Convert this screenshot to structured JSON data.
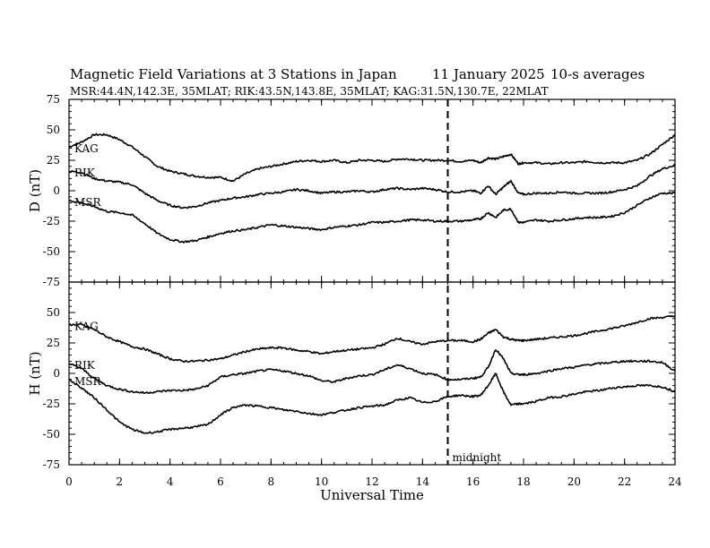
{
  "header": {
    "title": "Magnetic Field Variations at 3 Stations in Japan",
    "date": "11 January  2025",
    "averages": "10-s averages",
    "stations": "MSR:44.4N,142.3E, 35MLAT;  RIK:43.5N,143.8E, 35MLAT;  KAG:31.5N,130.7E, 22MLAT"
  },
  "chart_data": [
    {
      "type": "line",
      "ylabel": "D (nT)",
      "ylim": [
        -75,
        75
      ],
      "yticks": [
        -75,
        -50,
        -25,
        0,
        25,
        50,
        75
      ],
      "xlim": [
        0,
        24
      ],
      "xticks": [
        0,
        2,
        4,
        6,
        8,
        10,
        12,
        14,
        16,
        18,
        20,
        22,
        24
      ],
      "series": [
        {
          "name": "KAG",
          "x": [
            0,
            0.5,
            1,
            1.5,
            2,
            2.5,
            3,
            3.5,
            4,
            4.5,
            5,
            5.5,
            6,
            6.5,
            7,
            7.5,
            8,
            8.5,
            9,
            9.5,
            10,
            10.5,
            11,
            11.5,
            12,
            12.5,
            13,
            13.5,
            14,
            14.5,
            15,
            15.5,
            16,
            16.3,
            16.6,
            16.9,
            17.2,
            17.5,
            17.8,
            18,
            18.5,
            19,
            19.5,
            20,
            20.5,
            21,
            21.5,
            22,
            22.5,
            23,
            23.5,
            24
          ],
          "y": [
            36,
            40,
            46,
            46,
            42,
            36,
            28,
            20,
            16,
            14,
            12,
            11,
            11,
            8,
            14,
            18,
            20,
            22,
            24,
            25,
            24,
            25,
            23,
            25,
            25,
            24,
            26,
            26,
            25,
            25,
            25,
            24,
            25,
            23,
            27,
            26,
            28,
            30,
            22,
            23,
            23,
            22,
            23,
            23,
            24,
            23,
            23,
            23,
            25,
            30,
            38,
            46
          ]
        },
        {
          "name": "RIK",
          "x": [
            0,
            0.5,
            1,
            1.5,
            2,
            2.5,
            3,
            3.5,
            4,
            4.5,
            5,
            5.5,
            6,
            6.5,
            7,
            7.5,
            8,
            8.5,
            9,
            9.5,
            10,
            10.5,
            11,
            11.5,
            12,
            12.5,
            13,
            13.5,
            14,
            14.5,
            15,
            15.5,
            16,
            16.3,
            16.6,
            16.9,
            17.2,
            17.5,
            17.8,
            18,
            18.5,
            19,
            19.5,
            20,
            20.5,
            21,
            21.5,
            22,
            22.5,
            23,
            23.5,
            24
          ],
          "y": [
            16,
            15,
            10,
            8,
            7,
            5,
            -2,
            -8,
            -12,
            -14,
            -13,
            -10,
            -8,
            -6,
            -5,
            -3,
            -2,
            -1,
            1,
            0,
            -2,
            -1,
            -1,
            0,
            -1,
            1,
            2,
            1,
            2,
            1,
            -1,
            -1,
            0,
            -2,
            4,
            -3,
            3,
            8,
            -2,
            -3,
            -2,
            -2,
            -1,
            -2,
            -2,
            -2,
            -1,
            1,
            4,
            12,
            18,
            21
          ]
        },
        {
          "name": "MSR",
          "x": [
            0,
            0.5,
            1,
            1.5,
            2,
            2.5,
            3,
            3.5,
            4,
            4.5,
            5,
            5.5,
            6,
            6.5,
            7,
            7.5,
            8,
            8.5,
            9,
            9.5,
            10,
            10.5,
            11,
            11.5,
            12,
            12.5,
            13,
            13.5,
            14,
            14.5,
            15,
            15.5,
            16,
            16.3,
            16.6,
            16.9,
            17.2,
            17.5,
            17.8,
            18,
            18.5,
            19,
            19.5,
            20,
            20.5,
            21,
            21.5,
            22,
            22.5,
            23,
            23.5,
            24
          ],
          "y": [
            -8,
            -10,
            -13,
            -17,
            -18,
            -20,
            -27,
            -35,
            -40,
            -42,
            -41,
            -38,
            -35,
            -33,
            -32,
            -30,
            -28,
            -29,
            -30,
            -31,
            -32,
            -30,
            -29,
            -28,
            -26,
            -26,
            -25,
            -24,
            -24,
            -25,
            -25,
            -25,
            -24,
            -23,
            -18,
            -22,
            -16,
            -15,
            -26,
            -26,
            -24,
            -25,
            -24,
            -23,
            -22,
            -22,
            -21,
            -18,
            -12,
            -6,
            -2,
            -2
          ]
        }
      ]
    },
    {
      "type": "line",
      "ylabel": "H (nT)",
      "xlabel": "Universal Time",
      "ylim": [
        -75,
        75
      ],
      "yticks": [
        -75,
        -50,
        -25,
        0,
        25,
        50,
        75
      ],
      "xlim": [
        0,
        24
      ],
      "xticks": [
        0,
        2,
        4,
        6,
        8,
        10,
        12,
        14,
        16,
        18,
        20,
        22,
        24
      ],
      "series": [
        {
          "name": "KAG",
          "x": [
            0,
            0.5,
            1,
            1.5,
            2,
            2.5,
            3,
            3.5,
            4,
            4.5,
            5,
            5.5,
            6,
            6.5,
            7,
            7.5,
            8,
            8.5,
            9,
            9.5,
            10,
            10.5,
            11,
            11.5,
            12,
            12.5,
            13,
            13.5,
            14,
            14.5,
            15,
            15.5,
            16,
            16.3,
            16.6,
            16.9,
            17.2,
            17.5,
            17.8,
            18,
            18.5,
            19,
            19.5,
            20,
            20.5,
            21,
            21.5,
            22,
            22.5,
            23,
            23.5,
            24
          ],
          "y": [
            40,
            40,
            36,
            30,
            26,
            22,
            20,
            16,
            12,
            10,
            10,
            11,
            12,
            15,
            18,
            20,
            21,
            21,
            19,
            18,
            16,
            18,
            19,
            20,
            21,
            24,
            29,
            26,
            24,
            26,
            27,
            27,
            26,
            28,
            33,
            36,
            30,
            28,
            27,
            27,
            28,
            29,
            30,
            31,
            33,
            35,
            37,
            39,
            42,
            45,
            46,
            47
          ]
        },
        {
          "name": "RIK",
          "x": [
            0,
            0.5,
            1,
            1.5,
            2,
            2.5,
            3,
            3.5,
            4,
            4.5,
            5,
            5.5,
            6,
            6.5,
            7,
            7.5,
            8,
            8.5,
            9,
            9.5,
            10,
            10.5,
            11,
            11.5,
            12,
            12.5,
            13,
            13.5,
            14,
            14.5,
            15,
            15.5,
            16,
            16.3,
            16.6,
            16.9,
            17.2,
            17.5,
            17.8,
            18,
            18.5,
            19,
            19.5,
            20,
            20.5,
            21,
            21.5,
            22,
            22.5,
            23,
            23.5,
            24
          ],
          "y": [
            8,
            4,
            -4,
            -10,
            -13,
            -15,
            -16,
            -15,
            -14,
            -14,
            -13,
            -10,
            -3,
            -1,
            0,
            2,
            3,
            2,
            0,
            -2,
            -6,
            -7,
            -4,
            -2,
            -1,
            3,
            7,
            4,
            0,
            -1,
            -5,
            -5,
            -4,
            -3,
            5,
            20,
            12,
            0,
            -1,
            -1,
            0,
            2,
            4,
            5,
            7,
            8,
            9,
            10,
            10,
            10,
            9,
            2
          ]
        },
        {
          "name": "MSR",
          "x": [
            0,
            0.5,
            1,
            1.5,
            2,
            2.5,
            3,
            3.5,
            4,
            4.5,
            5,
            5.5,
            6,
            6.5,
            7,
            7.5,
            8,
            8.5,
            9,
            9.5,
            10,
            10.5,
            11,
            11.5,
            12,
            12.5,
            13,
            13.5,
            14,
            14.5,
            15,
            15.5,
            16,
            16.3,
            16.6,
            16.9,
            17.2,
            17.5,
            17.8,
            18,
            18.5,
            19,
            19.5,
            20,
            20.5,
            21,
            21.5,
            22,
            22.5,
            23,
            23.5,
            24
          ],
          "y": [
            -5,
            -12,
            -20,
            -30,
            -40,
            -46,
            -49,
            -48,
            -46,
            -45,
            -44,
            -42,
            -34,
            -28,
            -26,
            -27,
            -28,
            -30,
            -31,
            -33,
            -34,
            -32,
            -30,
            -28,
            -27,
            -26,
            -22,
            -20,
            -24,
            -23,
            -19,
            -18,
            -19,
            -18,
            -10,
            0,
            -15,
            -26,
            -25,
            -25,
            -23,
            -20,
            -19,
            -17,
            -15,
            -14,
            -12,
            -11,
            -10,
            -10,
            -11,
            -15
          ]
        }
      ]
    }
  ],
  "annotation": {
    "midnight_label": "midnight",
    "midnight_hour": 15
  }
}
